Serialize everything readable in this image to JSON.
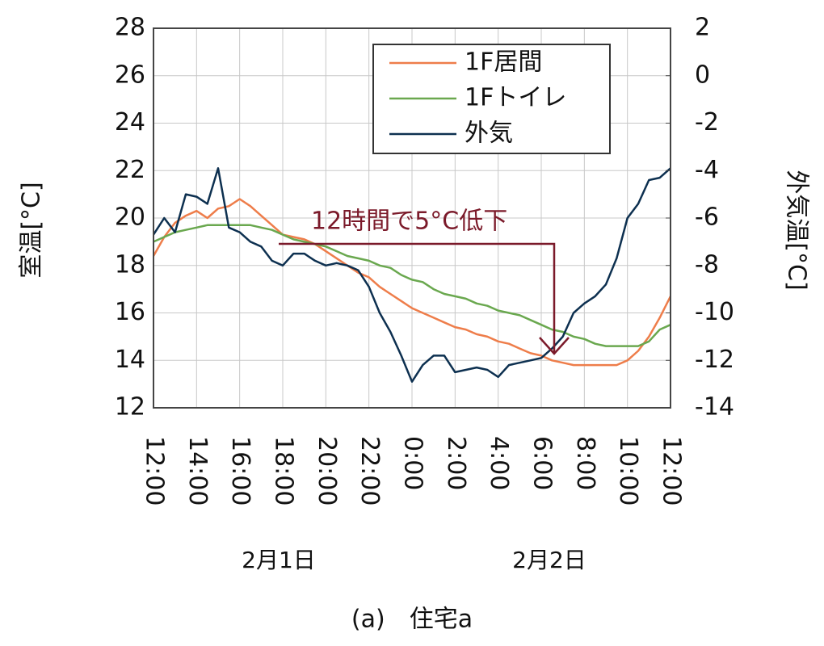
{
  "chart_data": {
    "type": "line",
    "caption": "(a)　住宅a",
    "ylabel": "室温[°C]",
    "y2label": "外気温[°C]",
    "annotation": "12時間で5°C低下",
    "date_labels": [
      "2月1日",
      "2月2日"
    ],
    "x": [
      0,
      0.5,
      1,
      1.5,
      2,
      2.5,
      3,
      3.5,
      4,
      4.5,
      5,
      5.5,
      6,
      6.5,
      7,
      7.5,
      8,
      8.5,
      9,
      9.5,
      10,
      10.5,
      11,
      11.5,
      12,
      12.5,
      13,
      13.5,
      14,
      14.5,
      15,
      15.5,
      16,
      16.5,
      17,
      17.5,
      18,
      18.5,
      19,
      19.5,
      20,
      20.5,
      21,
      21.5,
      22,
      22.5,
      23,
      23.5,
      24
    ],
    "xlim": [
      0,
      24
    ],
    "xticks": [
      {
        "value": 0,
        "label": "12:00"
      },
      {
        "value": 2,
        "label": "14:00"
      },
      {
        "value": 4,
        "label": "16:00"
      },
      {
        "value": 6,
        "label": "18:00"
      },
      {
        "value": 8,
        "label": "20:00"
      },
      {
        "value": 10,
        "label": "22:00"
      },
      {
        "value": 12,
        "label": "0:00"
      },
      {
        "value": 14,
        "label": "2:00"
      },
      {
        "value": 16,
        "label": "4:00"
      },
      {
        "value": 18,
        "label": "6:00"
      },
      {
        "value": 20,
        "label": "8:00"
      },
      {
        "value": 22,
        "label": "10:00"
      },
      {
        "value": 24,
        "label": "12:00"
      }
    ],
    "ylim": [
      12,
      28
    ],
    "yticks": [
      12,
      14,
      16,
      18,
      20,
      22,
      24,
      26,
      28
    ],
    "y2lim": [
      -14,
      2
    ],
    "y2ticks": [
      -14,
      -12,
      -10,
      -8,
      -6,
      -4,
      -2,
      0,
      2
    ],
    "grid": true,
    "legend": "top-right",
    "series": [
      {
        "name": "1F居間",
        "color": "#ee7d4a",
        "values": [
          18.4,
          19.2,
          19.8,
          20.1,
          20.3,
          20.0,
          20.4,
          20.5,
          20.8,
          20.5,
          20.1,
          19.7,
          19.3,
          19.2,
          19.1,
          18.9,
          18.6,
          18.3,
          18.0,
          17.7,
          17.5,
          17.1,
          16.8,
          16.5,
          16.2,
          16.0,
          15.8,
          15.6,
          15.4,
          15.3,
          15.1,
          15.0,
          14.8,
          14.7,
          14.5,
          14.3,
          14.2,
          14.0,
          13.9,
          13.8,
          13.8,
          13.8,
          13.8,
          13.8,
          14.0,
          14.4,
          15.0,
          15.8,
          16.7
        ]
      },
      {
        "name": "1Fトイレ",
        "color": "#6aa84f",
        "values": [
          19.0,
          19.2,
          19.4,
          19.5,
          19.6,
          19.7,
          19.7,
          19.7,
          19.7,
          19.7,
          19.6,
          19.5,
          19.3,
          19.1,
          19.0,
          18.9,
          18.8,
          18.6,
          18.4,
          18.3,
          18.2,
          18.0,
          17.9,
          17.6,
          17.4,
          17.3,
          17.0,
          16.8,
          16.7,
          16.6,
          16.4,
          16.3,
          16.1,
          16.0,
          15.9,
          15.7,
          15.5,
          15.3,
          15.2,
          15.0,
          14.9,
          14.7,
          14.6,
          14.6,
          14.6,
          14.6,
          14.8,
          15.3,
          15.5
        ]
      },
      {
        "name": "外気",
        "color": "#0d3050",
        "axis": "y2",
        "values": [
          -6.7,
          -6.0,
          -6.6,
          -5.0,
          -5.1,
          -5.4,
          -3.9,
          -6.4,
          -6.6,
          -7.0,
          -7.2,
          -7.8,
          -8.0,
          -7.5,
          -7.5,
          -7.8,
          -8.0,
          -7.9,
          -8.0,
          -8.2,
          -8.9,
          -10.0,
          -10.8,
          -11.8,
          -12.9,
          -12.2,
          -11.8,
          -11.8,
          -12.5,
          -12.4,
          -12.3,
          -12.4,
          -12.7,
          -12.2,
          -12.1,
          -12.0,
          -11.9,
          -11.5,
          -11.0,
          -10.0,
          -9.6,
          -9.3,
          -8.8,
          -7.7,
          -6.0,
          -5.4,
          -4.4,
          -4.3,
          -3.9
        ]
      }
    ]
  }
}
